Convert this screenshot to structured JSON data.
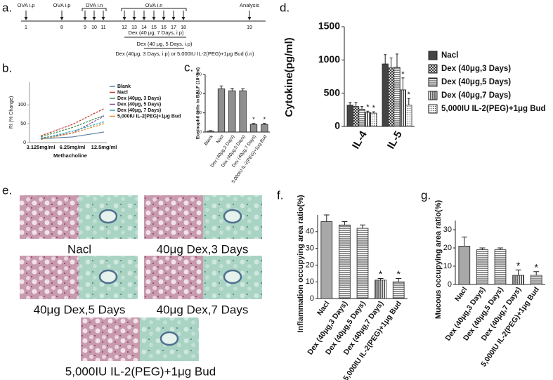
{
  "figure": {
    "a": {
      "label": "a.",
      "days": [
        "1",
        "8",
        "9",
        "10",
        "11",
        "12",
        "13",
        "14",
        "15",
        "16",
        "17",
        "18",
        "19"
      ],
      "events": [
        "OVA i.p",
        "OVA i.p",
        "OVA i.n",
        "OVA i.n",
        "Analysis"
      ],
      "treatments": [
        "Dex (40 μg, 7 Days, i.p)",
        "Dex (40 μg, 5 Days, i.p)",
        "Dex (40μg, 3 Days, i.p) or 5,000IU IL-2(PEG)+1μg Bud (i.n)"
      ]
    },
    "b": {
      "label": "b.",
      "type": "line",
      "ylabel": "RI (% Change)",
      "xlabel": "Methacholine",
      "categories": [
        "3.125mg/ml",
        "6.25mg/ml",
        "12.5mg/ml"
      ],
      "ylim": [
        0,
        160
      ],
      "yticks": [
        0,
        50,
        100
      ],
      "legend": "right",
      "series": [
        {
          "name": "Blank",
          "color": "#5b7fa6",
          "values": [
            10,
            15,
            28
          ]
        },
        {
          "name": "Nacl",
          "color": "#c0392b",
          "values": [
            18,
            48,
            90
          ]
        },
        {
          "name": "Dex (40μg, 3 Days)",
          "color": "#3f8f4f",
          "values": [
            15,
            40,
            72
          ]
        },
        {
          "name": "Dex (40μg, 5 Days)",
          "color": "#7b4fa0",
          "values": [
            12,
            25,
            70
          ]
        },
        {
          "name": "Dex (40μg, 7 Days)",
          "color": "#2aa7a7",
          "values": [
            10,
            30,
            55
          ]
        },
        {
          "name": "5,000IU IL-2(PEG)+1μg Bud",
          "color": "#e08a2c",
          "values": [
            8,
            25,
            50
          ]
        }
      ]
    },
    "c": {
      "label": "c.",
      "type": "bar",
      "ylabel": "Eosinophil cells in BALF (10⁴/ml)",
      "categories": [
        "Blank",
        "Nacl",
        "Dex (40μg,3 Days)",
        "Dex (40μg,5 Days)",
        "Dex (40μg,7 Days)",
        "5,000IU IL-2(PEG)+1μg Bud"
      ],
      "values": [
        10,
        450,
        430,
        430,
        80,
        80
      ],
      "errors": [
        5,
        30,
        25,
        20,
        10,
        10
      ],
      "sig": [
        null,
        null,
        null,
        null,
        "*",
        "*"
      ],
      "patterns": [
        "solid",
        "solid",
        "solid",
        "solid",
        "solid",
        "solid"
      ],
      "color": "#8f8f8f",
      "ylim": [
        0,
        600
      ],
      "yticks": [
        0,
        200,
        400,
        600
      ]
    },
    "d": {
      "label": "d.",
      "type": "grouped-bar",
      "ylabel": "Cytokine(pg/ml)",
      "categories": [
        "IL-4",
        "IL-5"
      ],
      "ylim": [
        0,
        1500
      ],
      "yticks": [
        0,
        500,
        1000,
        1500
      ],
      "legend": "right",
      "color": "#444444",
      "series": [
        {
          "name": "Nacl",
          "pattern": "solid",
          "values": [
            320,
            940
          ],
          "errors": [
            40,
            140
          ],
          "sig": [
            null,
            null
          ]
        },
        {
          "name": "Dex (40μg,3 Days)",
          "pattern": "crosshatch",
          "values": [
            300,
            880
          ],
          "errors": [
            60,
            150
          ],
          "sig": [
            null,
            null
          ]
        },
        {
          "name": "Dex (40μg,5 Days)",
          "pattern": "hlines",
          "values": [
            260,
            890
          ],
          "errors": [
            40,
            200
          ],
          "sig": [
            null,
            null
          ]
        },
        {
          "name": "Dex (40μg,7 Days)",
          "pattern": "vlines",
          "values": [
            210,
            550
          ],
          "errors": [
            20,
            180
          ],
          "sig": [
            "*",
            "*"
          ]
        },
        {
          "name": "5,000IU IL-2(PEG)+1μg Bud",
          "pattern": "dots",
          "values": [
            200,
            320
          ],
          "errors": [
            20,
            100
          ],
          "sig": [
            "*",
            "*"
          ]
        }
      ]
    },
    "e": {
      "label": "e.",
      "captions": [
        "Nacl",
        "40μg Dex,3 Days",
        "40μg Dex,5 Days",
        "40μg Dex,7 Days",
        "5,000IU IL-2(PEG)+1μg Bud"
      ]
    },
    "f": {
      "label": "f.",
      "type": "bar",
      "ylabel": "Inflammation occupying area ratio(%)",
      "categories": [
        "Nacl",
        "Dex (40μg,3 Days)",
        "Dex (40μg,5 Days)",
        "Dex (40μg,7 Days)",
        "5,000IU IL-2(PEG)+1μg Bud"
      ],
      "values": [
        46,
        44,
        42,
        11,
        10
      ],
      "errors": [
        4,
        2,
        2,
        1,
        2
      ],
      "sig": [
        null,
        null,
        null,
        "*",
        "*"
      ],
      "patterns": [
        "solid",
        "hlines",
        "hlines",
        "vlines",
        "hlines"
      ],
      "color": "#a8a8a8",
      "ylim": [
        0,
        50
      ],
      "yticks": [
        0,
        10,
        20,
        30,
        40
      ]
    },
    "g": {
      "label": "g.",
      "type": "bar",
      "ylabel": "Mucous occupying area ratio(%)",
      "categories": [
        "Nacl",
        "Dex (40μg,3 Days)",
        "Dex (40μg,5 Days)",
        "Dex (40μg,7 Days)",
        "5,000IU IL-2(PEG)+1μg Bud"
      ],
      "values": [
        21,
        19,
        19,
        5,
        5
      ],
      "errors": [
        5,
        1,
        1,
        3,
        2
      ],
      "sig": [
        null,
        null,
        null,
        "*",
        "*"
      ],
      "patterns": [
        "solid",
        "hlines",
        "hlines",
        "vlines",
        "hlines"
      ],
      "color": "#a8a8a8",
      "ylim": [
        0,
        35
      ],
      "yticks": [
        0,
        10,
        20,
        30
      ]
    }
  }
}
